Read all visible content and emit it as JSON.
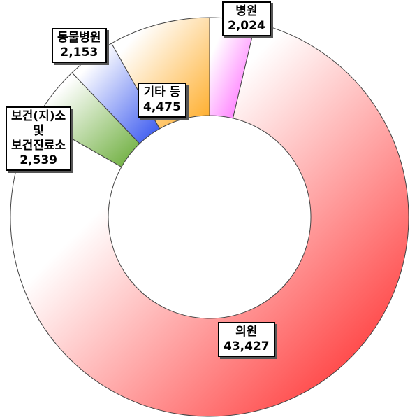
{
  "chart_data": {
    "type": "donut",
    "categories": [
      "병원",
      "의원",
      "보건(지)소\n및\n보건진료소",
      "동물병원",
      "기타 등"
    ],
    "values": [
      2024,
      43427,
      2539,
      2153,
      4475
    ],
    "value_labels": [
      "2,024",
      "43,427",
      "2,539",
      "2,153",
      "4,475"
    ],
    "colors": [
      "#ff55ff",
      "#ff1a1a",
      "#66aa33",
      "#3050ee",
      "#ffaa22"
    ]
  }
}
